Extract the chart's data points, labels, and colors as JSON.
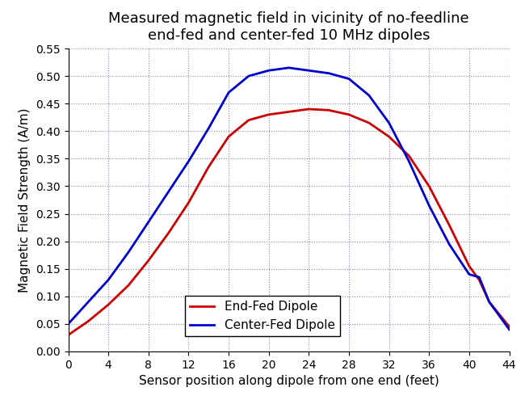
{
  "title": "Measured magnetic field in vicinity of no-feedline\nend-fed and center-fed 10 MHz dipoles",
  "xlabel": "Sensor position along dipole from one end (feet)",
  "ylabel": "Magnetic Field Strength (A/m)",
  "xlim": [
    0,
    44
  ],
  "ylim": [
    0,
    0.55
  ],
  "xticks": [
    0,
    4,
    8,
    12,
    16,
    20,
    24,
    28,
    32,
    36,
    40,
    44
  ],
  "yticks": [
    0.0,
    0.05,
    0.1,
    0.15,
    0.2,
    0.25,
    0.3,
    0.35,
    0.4,
    0.45,
    0.5,
    0.55
  ],
  "end_fed_x": [
    0,
    2,
    4,
    6,
    8,
    10,
    12,
    14,
    16,
    18,
    20,
    22,
    24,
    26,
    28,
    30,
    32,
    34,
    36,
    38,
    40,
    41,
    42,
    44
  ],
  "end_fed_y": [
    0.03,
    0.055,
    0.085,
    0.12,
    0.165,
    0.215,
    0.27,
    0.335,
    0.39,
    0.42,
    0.43,
    0.435,
    0.44,
    0.438,
    0.43,
    0.415,
    0.39,
    0.355,
    0.3,
    0.23,
    0.155,
    0.13,
    0.09,
    0.045
  ],
  "center_fed_x": [
    0,
    2,
    4,
    6,
    8,
    10,
    12,
    14,
    16,
    18,
    20,
    22,
    24,
    26,
    28,
    30,
    32,
    34,
    36,
    38,
    40,
    41,
    42,
    44
  ],
  "center_fed_y": [
    0.05,
    0.09,
    0.13,
    0.18,
    0.235,
    0.29,
    0.345,
    0.405,
    0.47,
    0.5,
    0.51,
    0.515,
    0.51,
    0.505,
    0.495,
    0.465,
    0.415,
    0.345,
    0.265,
    0.195,
    0.14,
    0.135,
    0.09,
    0.04
  ],
  "end_fed_color": "#cc0000",
  "center_fed_color": "#0000cc",
  "line_width": 2.0,
  "legend_labels": [
    "End-Fed Dipole",
    "Center-Fed Dipole"
  ],
  "background_color": "#ffffff",
  "grid_color": "#8888bb",
  "title_fontsize": 13,
  "label_fontsize": 11,
  "tick_fontsize": 10,
  "legend_fontsize": 11
}
